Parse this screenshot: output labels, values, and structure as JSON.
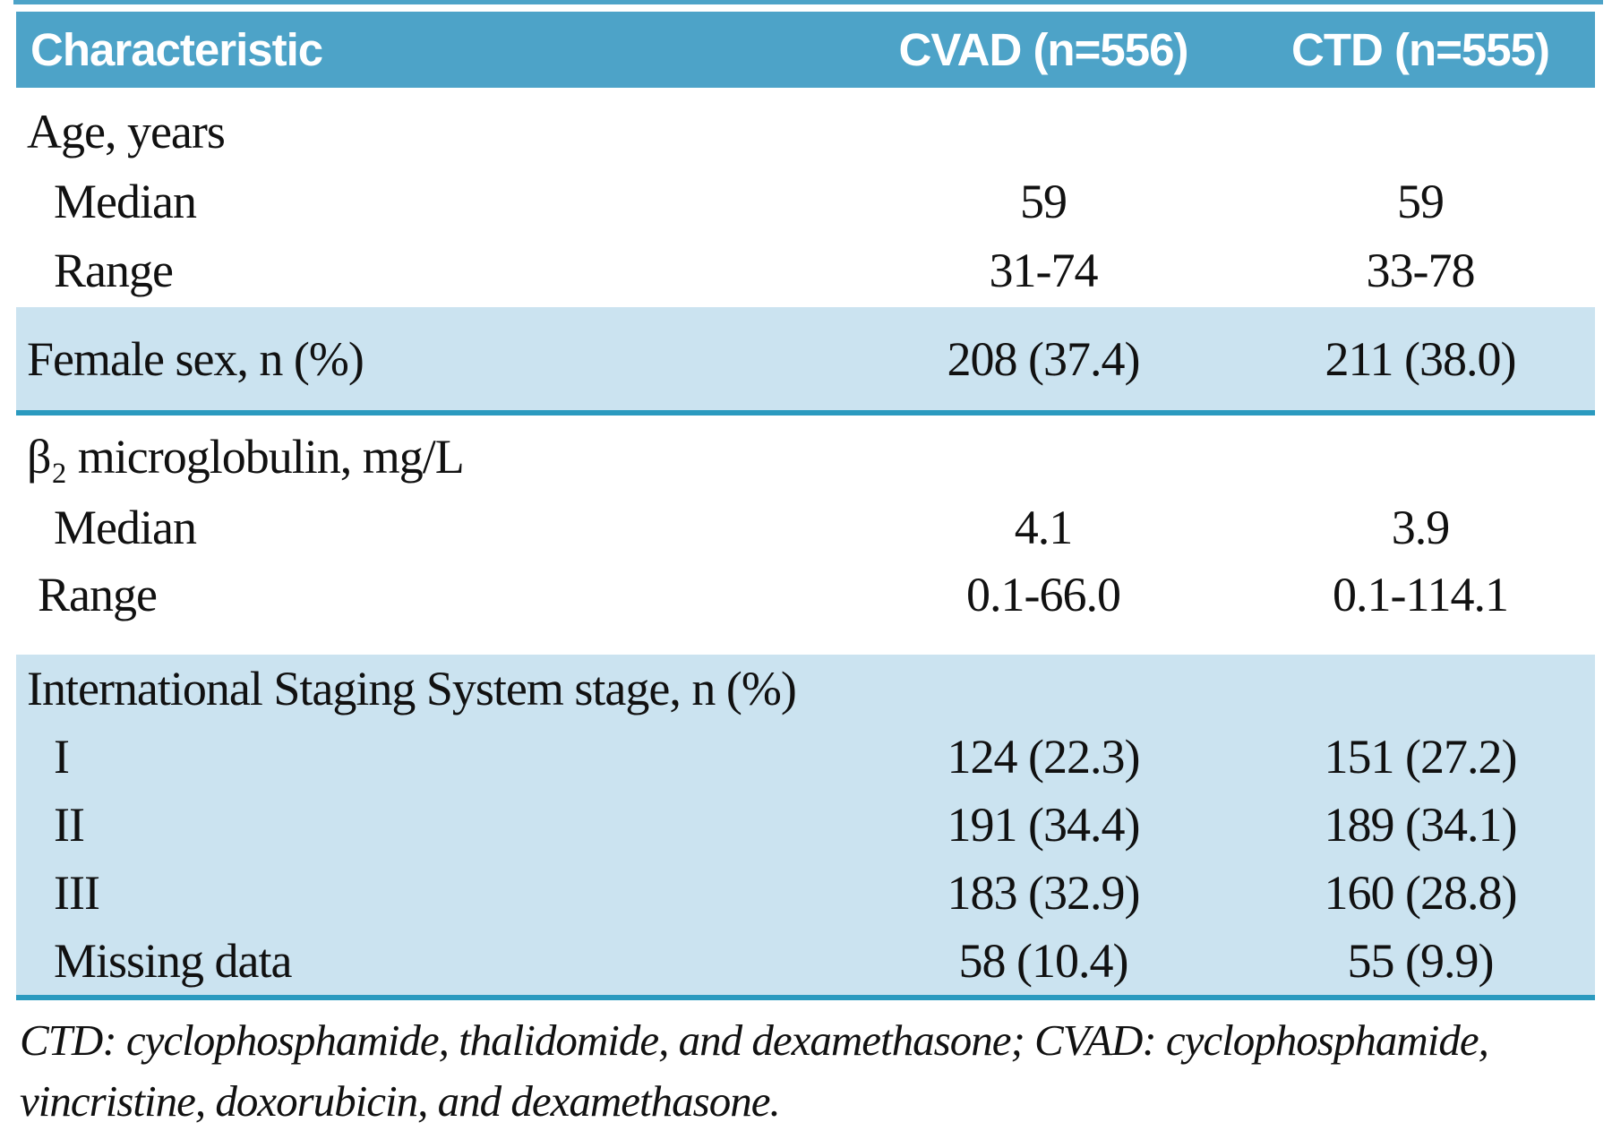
{
  "header": {
    "characteristic": "Characteristic",
    "cvad": "CVAD (n=556)",
    "ctd": "CTD (n=555)"
  },
  "rows": [
    {
      "label": "Age, years",
      "cvad": "",
      "ctd": ""
    },
    {
      "label": "Median",
      "cvad": "59",
      "ctd": "59"
    },
    {
      "label": "Range",
      "cvad": "31-74",
      "ctd": "33-78"
    },
    {
      "label": "Female sex, n (%)",
      "cvad": "208 (37.4)",
      "ctd": "211 (38.0)"
    },
    {
      "label": "β₂ microglobulin, mg/L",
      "cvad": "",
      "ctd": ""
    },
    {
      "label": "Median",
      "cvad": "4.1",
      "ctd": "3.9"
    },
    {
      "label": "Range",
      "cvad": "0.1-66.0",
      "ctd": "0.1-114.1"
    },
    {
      "label": "International Staging System stage, n (%)",
      "cvad": "",
      "ctd": ""
    },
    {
      "label": "I",
      "cvad": "124 (22.3)",
      "ctd": "151 (27.2)"
    },
    {
      "label": "II",
      "cvad": "191 (34.4)",
      "ctd": "189 (34.1)"
    },
    {
      "label": "III",
      "cvad": "183 (32.9)",
      "ctd": "160 (28.8)"
    },
    {
      "label": "Missing data",
      "cvad": "58 (10.4)",
      "ctd": "55 (9.9)"
    }
  ],
  "footnote": {
    "line1": "CTD: cyclophosphamide, thalidomide, and dexamethasone; CVAD: cyclophosphamide,",
    "line2": "vincristine, doxorubicin, and dexamethasone."
  },
  "colors": {
    "header_blue": "#4da3c8",
    "band_blue": "#cbe3f0",
    "rule_teal": "#2b9abf",
    "text": "#111111",
    "header_text": "#ffffff"
  }
}
